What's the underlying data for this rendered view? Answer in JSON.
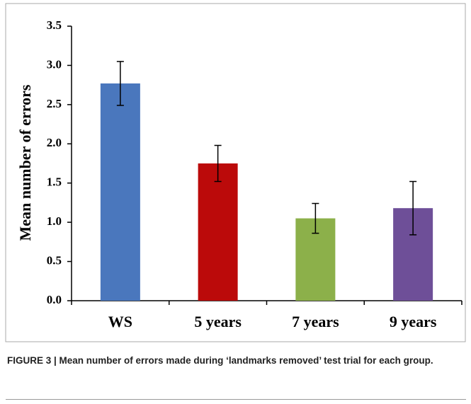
{
  "chart_data": {
    "type": "bar",
    "ylabel": "Mean number of errors",
    "categories": [
      "WS",
      "5 years",
      "7 years",
      "9 years"
    ],
    "values": [
      2.77,
      1.75,
      1.05,
      1.18
    ],
    "errors": [
      0.28,
      0.23,
      0.19,
      0.34
    ],
    "colors": [
      "#4a77bd",
      "#bb0a0a",
      "#8cb04a",
      "#6e4f98"
    ],
    "ylim": [
      0,
      3.5
    ],
    "yticks": [
      {
        "value": 0,
        "label": "0.0"
      },
      0.5,
      {
        "value": 1,
        "label": "1.0"
      },
      1.5,
      {
        "value": 2,
        "label": "2.0"
      },
      2.5,
      {
        "value": 3,
        "label": "3.0"
      },
      3.5
    ],
    "grid": false
  },
  "caption": "FIGURE 3 | Mean number of errors made during ‘landmarks removed’ test trial for each group."
}
